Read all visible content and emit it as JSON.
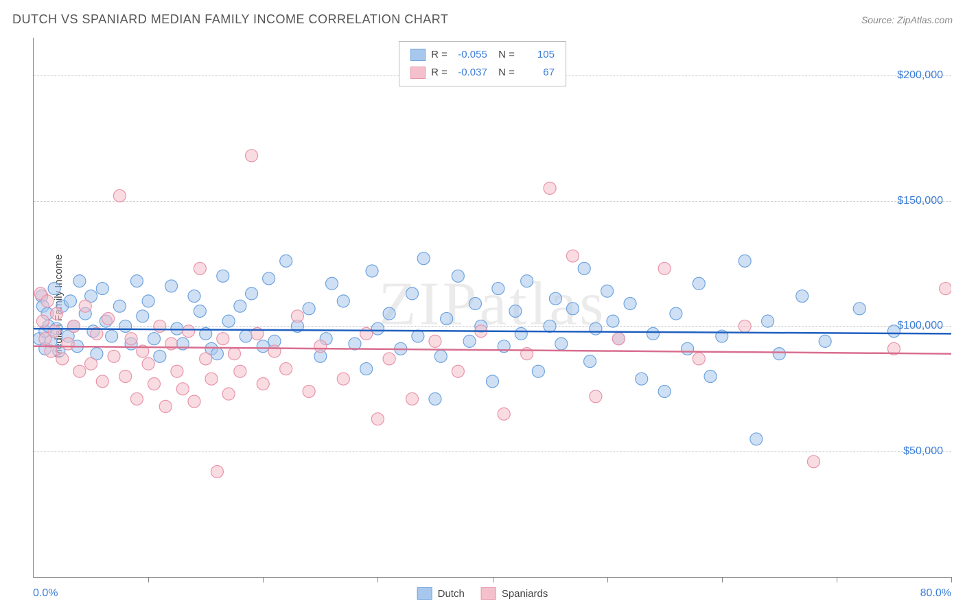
{
  "title": "DUTCH VS SPANIARD MEDIAN FAMILY INCOME CORRELATION CHART",
  "source": "Source: ZipAtlas.com",
  "watermark": "ZIPatlas",
  "ylabel": "Median Family Income",
  "chart": {
    "type": "scatter",
    "xlim": [
      0,
      80
    ],
    "ylim": [
      0,
      215000
    ],
    "x_unit": "%",
    "y_unit": "$",
    "x_min_label": "0.0%",
    "x_max_label": "80.0%",
    "y_ticks": [
      50000,
      100000,
      150000,
      200000
    ],
    "y_tick_labels": [
      "$50,000",
      "$100,000",
      "$150,000",
      "$200,000"
    ],
    "x_tick_positions": [
      0,
      10,
      20,
      30,
      40,
      50,
      60,
      70,
      80
    ],
    "grid_color": "#cccccc",
    "axis_color": "#888888",
    "background_color": "#ffffff",
    "tick_label_color": "#3b7dd8",
    "point_radius": 9,
    "point_opacity": 0.55,
    "line_width": 2.5,
    "series": [
      {
        "name": "Dutch",
        "color_fill": "#a7c7ed",
        "color_stroke": "#6ea3de",
        "line_color": "#1f5fbf",
        "R": "-0.055",
        "N": "105",
        "trend": {
          "y_at_x0": 99000,
          "y_at_x80": 97000
        },
        "points": [
          [
            0.5,
            95000
          ],
          [
            0.7,
            112000
          ],
          [
            0.8,
            108000
          ],
          [
            1.0,
            98000
          ],
          [
            1.0,
            91000
          ],
          [
            1.2,
            105000
          ],
          [
            1.3,
            100000
          ],
          [
            1.5,
            94000
          ],
          [
            1.8,
            115000
          ],
          [
            2.0,
            99000
          ],
          [
            2.2,
            90000
          ],
          [
            2.5,
            108000
          ],
          [
            3.0,
            96000
          ],
          [
            3.2,
            110000
          ],
          [
            3.5,
            100000
          ],
          [
            3.8,
            92000
          ],
          [
            4.0,
            118000
          ],
          [
            4.5,
            105000
          ],
          [
            5.0,
            112000
          ],
          [
            5.2,
            98000
          ],
          [
            5.5,
            89000
          ],
          [
            6.0,
            115000
          ],
          [
            6.3,
            102000
          ],
          [
            6.8,
            96000
          ],
          [
            7.5,
            108000
          ],
          [
            8.0,
            100000
          ],
          [
            8.5,
            93000
          ],
          [
            9.0,
            118000
          ],
          [
            9.5,
            104000
          ],
          [
            10.0,
            110000
          ],
          [
            10.5,
            95000
          ],
          [
            11.0,
            88000
          ],
          [
            12.0,
            116000
          ],
          [
            12.5,
            99000
          ],
          [
            13.0,
            93000
          ],
          [
            14.0,
            112000
          ],
          [
            14.5,
            106000
          ],
          [
            15.0,
            97000
          ],
          [
            15.5,
            91000
          ],
          [
            16.0,
            89000
          ],
          [
            16.5,
            120000
          ],
          [
            17.0,
            102000
          ],
          [
            18.0,
            108000
          ],
          [
            18.5,
            96000
          ],
          [
            19.0,
            113000
          ],
          [
            20.0,
            92000
          ],
          [
            20.5,
            119000
          ],
          [
            21.0,
            94000
          ],
          [
            22.0,
            126000
          ],
          [
            23.0,
            100000
          ],
          [
            24.0,
            107000
          ],
          [
            25.0,
            88000
          ],
          [
            25.5,
            95000
          ],
          [
            26.0,
            117000
          ],
          [
            27.0,
            110000
          ],
          [
            28.0,
            93000
          ],
          [
            29.0,
            83000
          ],
          [
            29.5,
            122000
          ],
          [
            30.0,
            99000
          ],
          [
            31.0,
            105000
          ],
          [
            32.0,
            91000
          ],
          [
            33.0,
            113000
          ],
          [
            33.5,
            96000
          ],
          [
            34.0,
            127000
          ],
          [
            35.0,
            71000
          ],
          [
            35.5,
            88000
          ],
          [
            36.0,
            103000
          ],
          [
            37.0,
            120000
          ],
          [
            38.0,
            94000
          ],
          [
            38.5,
            109000
          ],
          [
            39.0,
            100000
          ],
          [
            40.0,
            78000
          ],
          [
            40.5,
            115000
          ],
          [
            41.0,
            92000
          ],
          [
            42.0,
            106000
          ],
          [
            42.5,
            97000
          ],
          [
            43.0,
            118000
          ],
          [
            44.0,
            82000
          ],
          [
            45.0,
            100000
          ],
          [
            45.5,
            111000
          ],
          [
            46.0,
            93000
          ],
          [
            47.0,
            107000
          ],
          [
            48.0,
            123000
          ],
          [
            48.5,
            86000
          ],
          [
            49.0,
            99000
          ],
          [
            50.0,
            114000
          ],
          [
            50.5,
            102000
          ],
          [
            51.0,
            95000
          ],
          [
            52.0,
            109000
          ],
          [
            53.0,
            79000
          ],
          [
            54.0,
            97000
          ],
          [
            55.0,
            74000
          ],
          [
            56.0,
            105000
          ],
          [
            57.0,
            91000
          ],
          [
            58.0,
            117000
          ],
          [
            59.0,
            80000
          ],
          [
            60.0,
            96000
          ],
          [
            62.0,
            126000
          ],
          [
            63.0,
            55000
          ],
          [
            64.0,
            102000
          ],
          [
            65.0,
            89000
          ],
          [
            67.0,
            112000
          ],
          [
            69.0,
            94000
          ],
          [
            72.0,
            107000
          ],
          [
            75.0,
            98000
          ]
        ]
      },
      {
        "name": "Spaniards",
        "color_fill": "#f4c0cb",
        "color_stroke": "#e894aa",
        "line_color": "#d86e8f",
        "R": "-0.037",
        "N": "67",
        "trend": {
          "y_at_x0": 92000,
          "y_at_x80": 89000
        },
        "points": [
          [
            0.6,
            113000
          ],
          [
            0.8,
            102000
          ],
          [
            1.0,
            95000
          ],
          [
            1.2,
            110000
          ],
          [
            1.5,
            90000
          ],
          [
            1.8,
            98000
          ],
          [
            2.0,
            105000
          ],
          [
            2.5,
            87000
          ],
          [
            3.0,
            93000
          ],
          [
            3.5,
            100000
          ],
          [
            4.0,
            82000
          ],
          [
            4.5,
            108000
          ],
          [
            5.0,
            85000
          ],
          [
            5.5,
            97000
          ],
          [
            6.0,
            78000
          ],
          [
            6.5,
            103000
          ],
          [
            7.0,
            88000
          ],
          [
            7.5,
            152000
          ],
          [
            8.0,
            80000
          ],
          [
            8.5,
            95000
          ],
          [
            9.0,
            71000
          ],
          [
            9.5,
            90000
          ],
          [
            10.0,
            85000
          ],
          [
            10.5,
            77000
          ],
          [
            11.0,
            100000
          ],
          [
            11.5,
            68000
          ],
          [
            12.0,
            93000
          ],
          [
            12.5,
            82000
          ],
          [
            13.0,
            75000
          ],
          [
            13.5,
            98000
          ],
          [
            14.0,
            70000
          ],
          [
            14.5,
            123000
          ],
          [
            15.0,
            87000
          ],
          [
            15.5,
            79000
          ],
          [
            16.0,
            42000
          ],
          [
            16.5,
            95000
          ],
          [
            17.0,
            73000
          ],
          [
            17.5,
            89000
          ],
          [
            18.0,
            82000
          ],
          [
            19.0,
            168000
          ],
          [
            19.5,
            97000
          ],
          [
            20.0,
            77000
          ],
          [
            21.0,
            90000
          ],
          [
            22.0,
            83000
          ],
          [
            23.0,
            104000
          ],
          [
            24.0,
            74000
          ],
          [
            25.0,
            92000
          ],
          [
            27.0,
            79000
          ],
          [
            29.0,
            97000
          ],
          [
            30.0,
            63000
          ],
          [
            31.0,
            87000
          ],
          [
            33.0,
            71000
          ],
          [
            35.0,
            94000
          ],
          [
            37.0,
            82000
          ],
          [
            39.0,
            98000
          ],
          [
            41.0,
            65000
          ],
          [
            43.0,
            89000
          ],
          [
            45.0,
            155000
          ],
          [
            47.0,
            128000
          ],
          [
            49.0,
            72000
          ],
          [
            51.0,
            95000
          ],
          [
            55.0,
            123000
          ],
          [
            58.0,
            87000
          ],
          [
            62.0,
            100000
          ],
          [
            68.0,
            46000
          ],
          [
            75.0,
            91000
          ],
          [
            79.5,
            115000
          ]
        ]
      }
    ]
  },
  "legend_bottom": [
    {
      "label": "Dutch",
      "fill": "#a7c7ed",
      "stroke": "#6ea3de"
    },
    {
      "label": "Spaniards",
      "fill": "#f4c0cb",
      "stroke": "#e894aa"
    }
  ]
}
